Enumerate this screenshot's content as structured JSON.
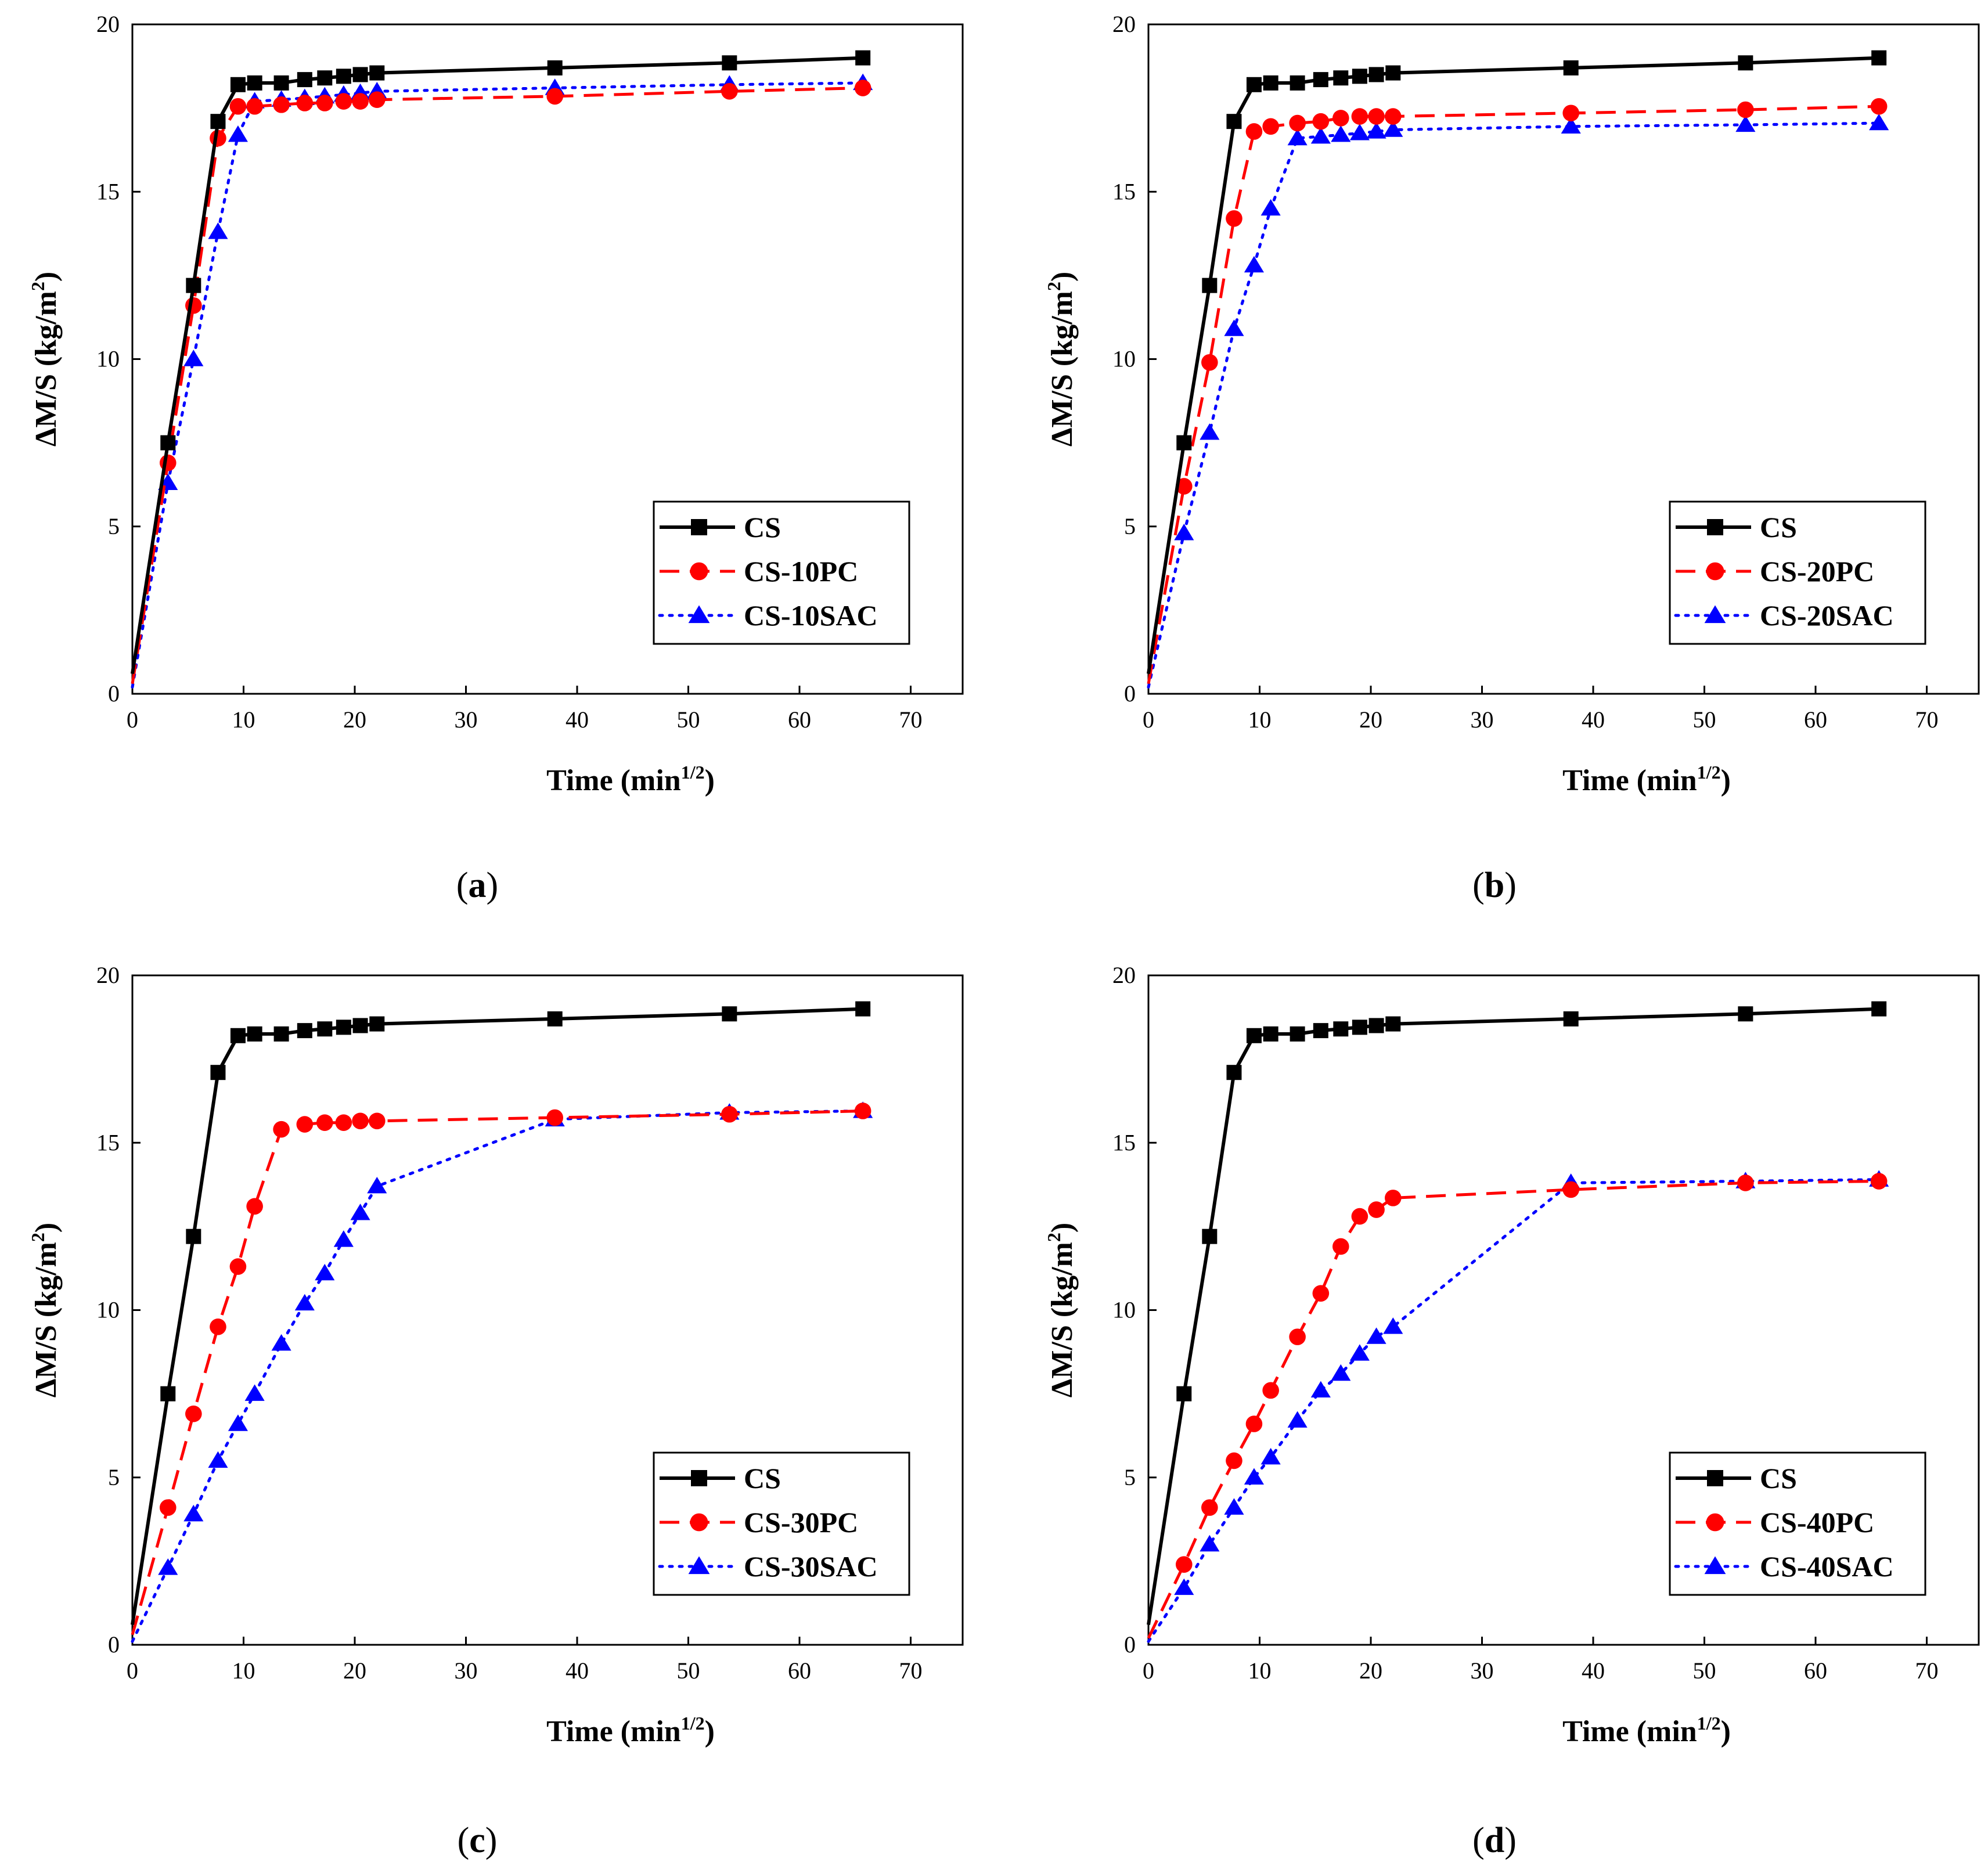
{
  "figure": {
    "x_axis_title": "Time (min",
    "x_axis_exponent": "1/2",
    "x_axis_close": ")",
    "y_axis_title": "ΔM/S (kg/m",
    "y_axis_exponent": "2",
    "y_axis_close": ")"
  },
  "chart_data": [
    {
      "type": "line",
      "panel": "a",
      "caption": "(a)",
      "xlabel": "Time (min1/2)",
      "ylabel": "ΔM/S (kg/m2)",
      "xlim": [
        0,
        75
      ],
      "ylim": [
        0,
        20
      ],
      "xticks": [
        0,
        10,
        20,
        30,
        40,
        50,
        60,
        70
      ],
      "yticks": [
        0,
        5,
        10,
        15,
        20
      ],
      "legend_position": "bottom-right",
      "series": [
        {
          "name": "CS",
          "color": "#000000",
          "marker": "square",
          "dash": "solid",
          "x": [
            0,
            3.2,
            5.5,
            7.7,
            9.5,
            11,
            13.4,
            15.5,
            17.3,
            19,
            20.5,
            22,
            38,
            53.7,
            65.7
          ],
          "y": [
            0.6,
            7.5,
            12.2,
            17.1,
            18.2,
            18.25,
            18.25,
            18.35,
            18.4,
            18.45,
            18.5,
            18.55,
            18.7,
            18.85,
            19.0
          ]
        },
        {
          "name": "CS-10PC",
          "color": "#ff0000",
          "marker": "circle",
          "dash": "dashed",
          "x": [
            0,
            3.2,
            5.5,
            7.7,
            9.5,
            11,
            13.4,
            15.5,
            17.3,
            19,
            20.5,
            22,
            38,
            53.7,
            65.7
          ],
          "y": [
            0.3,
            6.9,
            11.6,
            16.6,
            17.55,
            17.55,
            17.6,
            17.65,
            17.65,
            17.7,
            17.7,
            17.75,
            17.85,
            18.0,
            18.1
          ]
        },
        {
          "name": "CS-10SAC",
          "color": "#0000ff",
          "marker": "triangle",
          "dash": "dotted",
          "x": [
            0,
            3.2,
            5.5,
            7.7,
            9.5,
            11,
            13.4,
            15.5,
            17.3,
            19,
            20.5,
            22,
            38,
            53.7,
            65.7
          ],
          "y": [
            0.2,
            6.3,
            10.0,
            13.8,
            16.7,
            17.7,
            17.75,
            17.8,
            17.85,
            17.9,
            17.95,
            18.0,
            18.1,
            18.2,
            18.25
          ]
        }
      ]
    },
    {
      "type": "line",
      "panel": "b",
      "caption": "(b)",
      "xlabel": "Time (min1/2)",
      "ylabel": "ΔM/S (kg/m2)",
      "xlim": [
        0,
        75
      ],
      "ylim": [
        0,
        20
      ],
      "xticks": [
        0,
        10,
        20,
        30,
        40,
        50,
        60,
        70
      ],
      "yticks": [
        0,
        5,
        10,
        15,
        20
      ],
      "legend_position": "bottom-right",
      "series": [
        {
          "name": "CS",
          "color": "#000000",
          "marker": "square",
          "dash": "solid",
          "x": [
            0,
            3.2,
            5.5,
            7.7,
            9.5,
            11,
            13.4,
            15.5,
            17.3,
            19,
            20.5,
            22,
            38,
            53.7,
            65.7
          ],
          "y": [
            0.6,
            7.5,
            12.2,
            17.1,
            18.2,
            18.25,
            18.25,
            18.35,
            18.4,
            18.45,
            18.5,
            18.55,
            18.7,
            18.85,
            19.0
          ]
        },
        {
          "name": "CS-20PC",
          "color": "#ff0000",
          "marker": "circle",
          "dash": "dashed",
          "x": [
            0,
            3.2,
            5.5,
            7.7,
            9.5,
            11,
            13.4,
            15.5,
            17.3,
            19,
            20.5,
            22,
            38,
            53.7,
            65.7
          ],
          "y": [
            0.3,
            6.2,
            9.9,
            14.2,
            16.8,
            16.95,
            17.05,
            17.1,
            17.2,
            17.25,
            17.25,
            17.25,
            17.35,
            17.45,
            17.55
          ]
        },
        {
          "name": "CS-20SAC",
          "color": "#0000ff",
          "marker": "triangle",
          "dash": "dotted",
          "x": [
            0,
            3.2,
            5.5,
            7.7,
            9.5,
            11,
            13.4,
            15.5,
            17.3,
            19,
            20.5,
            22,
            38,
            53.7,
            65.7
          ],
          "y": [
            0.2,
            4.8,
            7.8,
            10.9,
            12.8,
            14.5,
            16.6,
            16.65,
            16.7,
            16.75,
            16.8,
            16.85,
            16.95,
            17.0,
            17.05
          ]
        }
      ]
    },
    {
      "type": "line",
      "panel": "c",
      "caption": "(c)",
      "xlabel": "Time (min1/2)",
      "ylabel": "ΔM/S (kg/m2)",
      "xlim": [
        0,
        75
      ],
      "ylim": [
        0,
        20
      ],
      "xticks": [
        0,
        10,
        20,
        30,
        40,
        50,
        60,
        70
      ],
      "yticks": [
        0,
        5,
        10,
        15,
        20
      ],
      "legend_position": "bottom-right",
      "series": [
        {
          "name": "CS",
          "color": "#000000",
          "marker": "square",
          "dash": "solid",
          "x": [
            0,
            3.2,
            5.5,
            7.7,
            9.5,
            11,
            13.4,
            15.5,
            17.3,
            19,
            20.5,
            22,
            38,
            53.7,
            65.7
          ],
          "y": [
            0.6,
            7.5,
            12.2,
            17.1,
            18.2,
            18.25,
            18.25,
            18.35,
            18.4,
            18.45,
            18.5,
            18.55,
            18.7,
            18.85,
            19.0
          ]
        },
        {
          "name": "CS-30PC",
          "color": "#ff0000",
          "marker": "circle",
          "dash": "dashed",
          "x": [
            0,
            3.2,
            5.5,
            7.7,
            9.5,
            11,
            13.4,
            15.5,
            17.3,
            19,
            20.5,
            22,
            38,
            53.7,
            65.7
          ],
          "y": [
            0.3,
            4.1,
            6.9,
            9.5,
            11.3,
            13.1,
            15.4,
            15.55,
            15.6,
            15.6,
            15.65,
            15.65,
            15.75,
            15.85,
            15.95
          ]
        },
        {
          "name": "CS-30SAC",
          "color": "#0000ff",
          "marker": "triangle",
          "dash": "dotted",
          "x": [
            0,
            3.2,
            5.5,
            7.7,
            9.5,
            11,
            13.4,
            15.5,
            17.3,
            19,
            20.5,
            22,
            38,
            53.7,
            65.7
          ],
          "y": [
            0.1,
            2.3,
            3.9,
            5.5,
            6.6,
            7.5,
            9.0,
            10.2,
            11.1,
            12.1,
            12.9,
            13.7,
            15.7,
            15.9,
            15.95
          ]
        }
      ]
    },
    {
      "type": "line",
      "panel": "d",
      "caption": "(d)",
      "xlabel": "Time (min1/2)",
      "ylabel": "ΔM/S (kg/m2)",
      "xlim": [
        0,
        75
      ],
      "ylim": [
        0,
        20
      ],
      "xticks": [
        0,
        10,
        20,
        30,
        40,
        50,
        60,
        70
      ],
      "yticks": [
        0,
        5,
        10,
        15,
        20
      ],
      "legend_position": "bottom-right",
      "series": [
        {
          "name": "CS",
          "color": "#000000",
          "marker": "square",
          "dash": "solid",
          "x": [
            0,
            3.2,
            5.5,
            7.7,
            9.5,
            11,
            13.4,
            15.5,
            17.3,
            19,
            20.5,
            22,
            38,
            53.7,
            65.7
          ],
          "y": [
            0.6,
            7.5,
            12.2,
            17.1,
            18.2,
            18.25,
            18.25,
            18.35,
            18.4,
            18.45,
            18.5,
            18.55,
            18.7,
            18.85,
            19.0
          ]
        },
        {
          "name": "CS-40PC",
          "color": "#ff0000",
          "marker": "circle",
          "dash": "dashed",
          "x": [
            0,
            3.2,
            5.5,
            7.7,
            9.5,
            11,
            13.4,
            15.5,
            17.3,
            19,
            20.5,
            22,
            38,
            53.7,
            65.7
          ],
          "y": [
            0.2,
            2.4,
            4.1,
            5.5,
            6.6,
            7.6,
            9.2,
            10.5,
            11.9,
            12.8,
            13.0,
            13.35,
            13.6,
            13.8,
            13.85
          ]
        },
        {
          "name": "CS-40SAC",
          "color": "#0000ff",
          "marker": "triangle",
          "dash": "dotted",
          "x": [
            0,
            3.2,
            5.5,
            7.7,
            9.5,
            11,
            13.4,
            15.5,
            17.3,
            19,
            20.5,
            22,
            38,
            53.7,
            65.7
          ],
          "y": [
            0.1,
            1.7,
            3.0,
            4.1,
            5.0,
            5.6,
            6.7,
            7.6,
            8.1,
            8.7,
            9.2,
            9.5,
            13.8,
            13.85,
            13.9
          ]
        }
      ]
    }
  ]
}
